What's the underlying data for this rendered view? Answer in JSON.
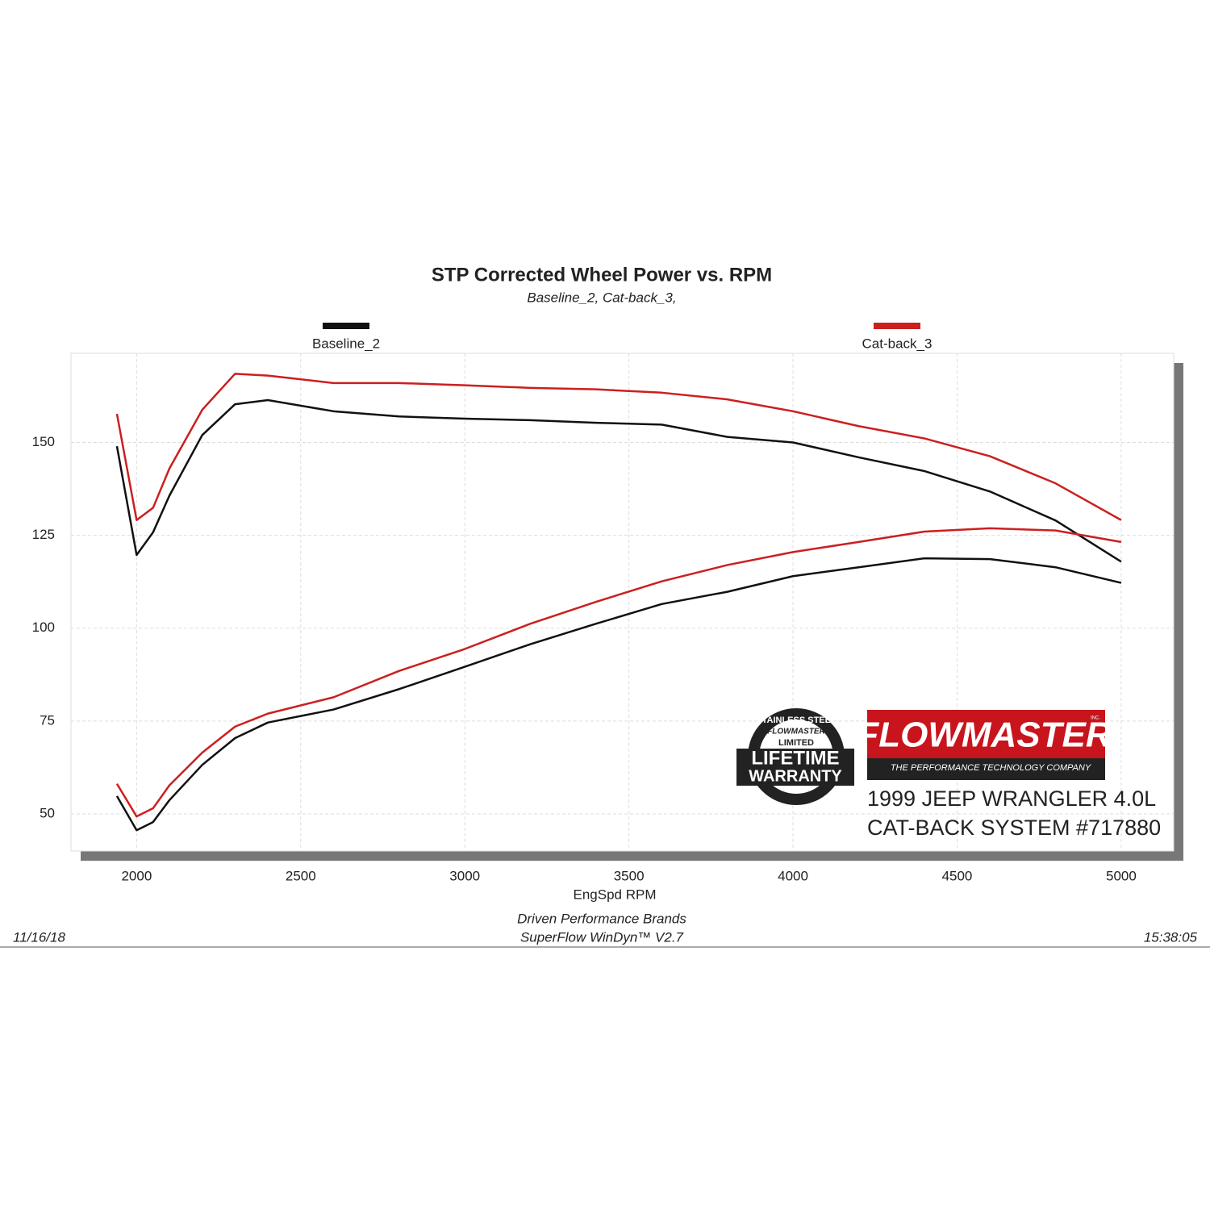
{
  "chart_data": {
    "type": "line",
    "title": "STP Corrected Wheel Power vs. RPM",
    "subtitle": "Baseline_2, Cat-back_3,",
    "x_label": "EngSpd  RPM",
    "x": [
      1940,
      2000,
      2050,
      2100,
      2200,
      2300,
      2400,
      2600,
      2800,
      3000,
      3200,
      3400,
      3600,
      3800,
      4000,
      4200,
      4400,
      4600,
      4800,
      5000
    ],
    "series": [
      {
        "name": "Baseline_2",
        "color": "#111111",
        "curves": [
          [
            149,
            119.7,
            125.8,
            135.7,
            152,
            160.3,
            161.4,
            158.4,
            157,
            156.4,
            156,
            155.3,
            154.8,
            151.5,
            150,
            146,
            142.3,
            136.8,
            129,
            117.9
          ],
          [
            54.8,
            45.6,
            47.8,
            53.7,
            63.2,
            70.4,
            74.6,
            78.1,
            83.6,
            89.6,
            95.7,
            101.2,
            106.5,
            109.8,
            114,
            116.4,
            118.8,
            118.6,
            116.4,
            112.2
          ]
        ]
      },
      {
        "name": "Cat-back_3",
        "color": "#cc1f1f",
        "curves": [
          [
            157.7,
            129.1,
            132.4,
            143,
            158.8,
            168.5,
            168,
            166,
            166,
            165.4,
            164.7,
            164.3,
            163.4,
            161.6,
            158.4,
            154.4,
            151.1,
            146.3,
            139,
            129.1
          ],
          [
            58.1,
            49.3,
            51.5,
            57.7,
            66.5,
            73.5,
            77,
            81.4,
            88.5,
            94.4,
            101.2,
            107.1,
            112.6,
            117,
            120.5,
            123.2,
            126,
            126.9,
            126.3,
            123.2
          ]
        ]
      }
    ],
    "xlim": [
      1800,
      5160
    ],
    "ylim": [
      40,
      174
    ],
    "xticks": [
      2000,
      2500,
      3000,
      3500,
      4000,
      4500,
      5000
    ],
    "yticks": [
      50,
      75,
      100,
      125,
      150
    ],
    "grid": true
  },
  "footer": {
    "company": "Driven Performance Brands",
    "software": "SuperFlow WinDyn™  V2.7",
    "date": "11/16/18",
    "time": "15:38:05"
  },
  "badge": {
    "arc": "STAINLESS STEEL",
    "brand": "FLOWMASTER",
    "limited": "LIMITED",
    "line1": "LIFETIME",
    "line2": "WARRANTY"
  },
  "logo": {
    "name": "FLOWMASTER",
    "inc": "INC.",
    "tagline": "THE PERFORMANCE TECHNOLOGY COMPANY"
  },
  "product": {
    "vehicle": "1999 JEEP WRANGLER 4.0L",
    "system": "CAT-BACK SYSTEM #717880"
  }
}
